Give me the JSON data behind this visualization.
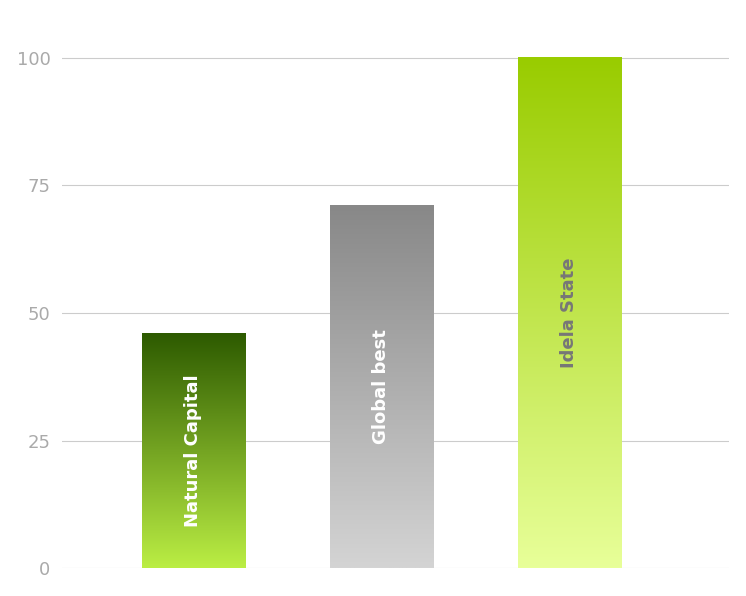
{
  "categories": [
    "Natural Capital",
    "Global best",
    "Idela State"
  ],
  "values": [
    46,
    71,
    100
  ],
  "bar_width": 0.55,
  "bar_positions": [
    1,
    2,
    3
  ],
  "xlim": [
    0.3,
    3.85
  ],
  "ylim": [
    0,
    108
  ],
  "yticks": [
    0,
    25,
    50,
    75,
    100
  ],
  "background_color": "#ffffff",
  "grid_color": "#cccccc",
  "bar_colors_top": [
    "#2d5a00",
    "#888888",
    "#99cc00"
  ],
  "bar_colors_bottom": [
    "#bbee44",
    "#d4d4d4",
    "#e8ff99"
  ],
  "label_colors": [
    "#ffffff",
    "#ffffff",
    "#777777"
  ],
  "label_fontsize": 13,
  "label_fontweight": "bold",
  "tick_fontsize": 13,
  "tick_color": "#aaaaaa",
  "figsize": [
    7.46,
    5.96
  ],
  "dpi": 100
}
